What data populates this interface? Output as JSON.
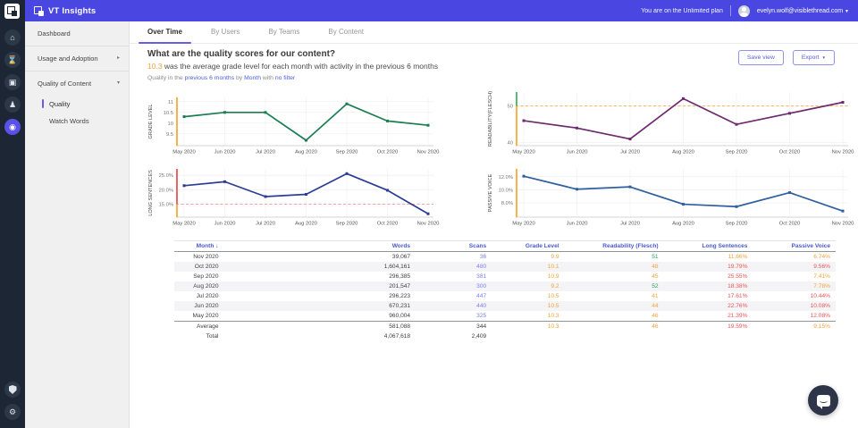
{
  "topbar": {
    "app_title": "VT Insights",
    "plan_text": "You are on the Unlimited plan",
    "user_email": "evelyn.wolf@visiblethread.com"
  },
  "rail": {
    "icons": [
      "home",
      "history",
      "reports",
      "team",
      "insights",
      "security",
      "settings"
    ]
  },
  "sidebar": {
    "items": [
      {
        "label": "Dashboard"
      },
      {
        "label": "Usage and Adoption",
        "caret": "right"
      },
      {
        "label": "Quality of Content",
        "caret": "down"
      },
      {
        "label": "Quality",
        "sub": true,
        "selected": true
      },
      {
        "label": "Watch Words",
        "sub": true
      }
    ]
  },
  "tabs": [
    {
      "label": "Over Time",
      "active": true
    },
    {
      "label": "By Users"
    },
    {
      "label": "By Teams"
    },
    {
      "label": "By Content"
    }
  ],
  "header": {
    "question": "What are the quality scores for our content?",
    "highlight": "10.3",
    "subtitle": " was the average grade level for each month with activity in the previous 6 months",
    "filter_prefix": "Quality in the ",
    "filter_link1": "previous 6 months",
    "filter_mid1": " by ",
    "filter_link2": "Month",
    "filter_mid2": " with ",
    "filter_link3": "no filter"
  },
  "actions": {
    "save": "Save view",
    "export": "Export"
  },
  "chart_data": [
    {
      "type": "line",
      "title": "GRADE LEVEL",
      "categories": [
        "May 2020",
        "Jun 2020",
        "Jul 2020",
        "Aug 2020",
        "Sep 2020",
        "Oct 2020",
        "Nov 2020"
      ],
      "values": [
        10.3,
        10.5,
        10.5,
        9.2,
        10.9,
        10.1,
        9.9
      ],
      "ylim": [
        8.95,
        11.2
      ],
      "ticks": [
        9.5,
        10,
        10.5,
        11
      ],
      "tick_labels": [
        "9.5",
        "10",
        "10.5",
        "11"
      ],
      "line_color": "#1b7e52",
      "edge_segments": [
        {
          "y1": 11.2,
          "y2": 8.95,
          "color": "#f7a933"
        }
      ]
    },
    {
      "type": "line",
      "title": "READABILITY(FLESCH)",
      "categories": [
        "May 2020",
        "Jun 2020",
        "Jul 2020",
        "Aug 2020",
        "Sep 2020",
        "Oct 2020",
        "Nov 2020"
      ],
      "values": [
        46,
        44,
        41,
        52,
        45,
        48,
        51
      ],
      "ylim": [
        39.2,
        53.8
      ],
      "ticks": [
        40,
        50
      ],
      "tick_labels": [
        "40",
        "50"
      ],
      "line_color": "#6e2a6e",
      "threshold": {
        "y": 50,
        "color": "#f6b254"
      },
      "edge_segments": [
        {
          "y1": 53.8,
          "y2": 50,
          "color": "#43b36a"
        },
        {
          "y1": 50,
          "y2": 39.2,
          "color": "#f7a933"
        }
      ]
    },
    {
      "type": "line",
      "title": "LONG SENTENCES",
      "categories": [
        "May 2020",
        "Jun 2020",
        "Jul 2020",
        "Aug 2020",
        "Sep 2020",
        "Oct 2020",
        "Nov 2020"
      ],
      "values": [
        21.39,
        22.76,
        17.61,
        18.38,
        25.55,
        19.79,
        11.66
      ],
      "ylim": [
        10.5,
        27.2
      ],
      "ticks": [
        15,
        20,
        25
      ],
      "tick_labels": [
        "15.0%",
        "20.0%",
        "25.0%"
      ],
      "line_color": "#2d3c96",
      "threshold": {
        "y": 15,
        "color": "#f59393"
      },
      "edge_segments": [
        {
          "y1": 27.2,
          "y2": 15,
          "color": "#ee5253"
        },
        {
          "y1": 15,
          "y2": 10.5,
          "color": "#f7a933"
        }
      ]
    },
    {
      "type": "line",
      "title": "PASSIVE VOICE",
      "categories": [
        "May 2020",
        "Jun 2020",
        "Jul 2020",
        "Aug 2020",
        "Sep 2020",
        "Oct 2020",
        "Nov 2020"
      ],
      "values": [
        12.08,
        10.08,
        10.44,
        7.78,
        7.41,
        9.56,
        6.74
      ],
      "ylim": [
        5.8,
        13.2
      ],
      "ticks": [
        8,
        10,
        12
      ],
      "tick_labels": [
        "8.0%",
        "10.0%",
        "12.0%"
      ],
      "line_color": "#2e5f9e",
      "edge_segments": [
        {
          "y1": 13.2,
          "y2": 5.8,
          "color": "#f7a933"
        }
      ]
    }
  ],
  "table": {
    "columns": [
      {
        "label": "Month",
        "sort": "↓"
      },
      {
        "label": "Words"
      },
      {
        "label": "Scans"
      },
      {
        "label": "Grade Level"
      },
      {
        "label": "Readability (Flesch)"
      },
      {
        "label": "Long Sentences"
      },
      {
        "label": "Passive Voice"
      }
    ],
    "rows": [
      [
        [
          "Nov 2020",
          "dark"
        ],
        [
          "39,067",
          "dark"
        ],
        [
          "36",
          "blue"
        ],
        [
          "9.9",
          "orange"
        ],
        [
          "51",
          "green"
        ],
        [
          "11.66%",
          "orange"
        ],
        [
          "6.74%",
          "orange"
        ]
      ],
      [
        [
          "Oct 2020",
          "dark"
        ],
        [
          "1,604,161",
          "dark"
        ],
        [
          "480",
          "blue"
        ],
        [
          "10.1",
          "orange"
        ],
        [
          "48",
          "orange"
        ],
        [
          "19.79%",
          "red"
        ],
        [
          "9.56%",
          "red"
        ]
      ],
      [
        [
          "Sep 2020",
          "dark"
        ],
        [
          "296,385",
          "dark"
        ],
        [
          "381",
          "blue"
        ],
        [
          "10.9",
          "orange"
        ],
        [
          "45",
          "orange"
        ],
        [
          "25.55%",
          "red"
        ],
        [
          "7.41%",
          "orange"
        ]
      ],
      [
        [
          "Aug 2020",
          "dark"
        ],
        [
          "201,547",
          "dark"
        ],
        [
          "300",
          "blue"
        ],
        [
          "9.2",
          "orange"
        ],
        [
          "52",
          "green"
        ],
        [
          "18.38%",
          "red"
        ],
        [
          "7.78%",
          "orange"
        ]
      ],
      [
        [
          "Jul 2020",
          "dark"
        ],
        [
          "296,223",
          "dark"
        ],
        [
          "447",
          "blue"
        ],
        [
          "10.5",
          "orange"
        ],
        [
          "41",
          "orange"
        ],
        [
          "17.61%",
          "red"
        ],
        [
          "10.44%",
          "red"
        ]
      ],
      [
        [
          "Jun 2020",
          "dark"
        ],
        [
          "670,231",
          "dark"
        ],
        [
          "440",
          "blue"
        ],
        [
          "10.5",
          "orange"
        ],
        [
          "44",
          "orange"
        ],
        [
          "22.76%",
          "red"
        ],
        [
          "10.08%",
          "red"
        ]
      ],
      [
        [
          "May 2020",
          "dark"
        ],
        [
          "960,004",
          "dark"
        ],
        [
          "325",
          "blue"
        ],
        [
          "10.3",
          "orange"
        ],
        [
          "46",
          "orange"
        ],
        [
          "21.39%",
          "red"
        ],
        [
          "12.08%",
          "red"
        ]
      ]
    ],
    "summary": [
      [
        [
          "Average",
          "dark"
        ],
        [
          "581,088",
          "dark"
        ],
        [
          "344",
          "dark"
        ],
        [
          "10.3",
          "orange"
        ],
        [
          "46",
          "orange"
        ],
        [
          "19.59%",
          "red"
        ],
        [
          "9.15%",
          "orange"
        ]
      ],
      [
        [
          "Total",
          "dark"
        ],
        [
          "4,067,618",
          "dark"
        ],
        [
          "2,409",
          "dark"
        ],
        [
          "",
          ""
        ],
        [
          "",
          ""
        ],
        [
          "",
          ""
        ],
        [
          "",
          ""
        ]
      ]
    ]
  },
  "colors": {
    "accent_indigo": "#4a46e1",
    "link_blue": "#4c5fe0",
    "warn_orange": "#f2a33c",
    "bad_red": "#ee5253",
    "good_green": "#27a35d"
  }
}
